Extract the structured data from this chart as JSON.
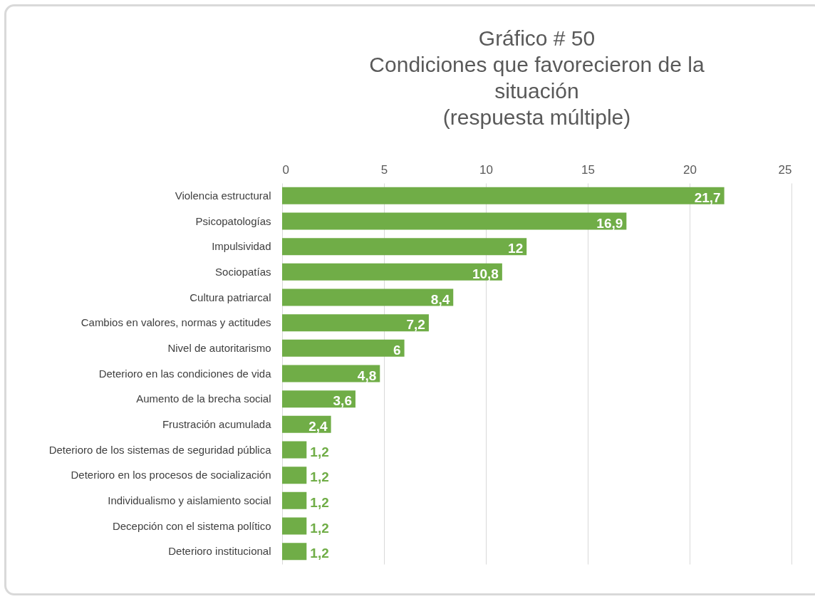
{
  "chart_data": {
    "type": "bar",
    "orientation": "horizontal",
    "title": "Gráfico # 50\nCondiciones que favorecieron de la\nsituación\n(respuesta múltiple)",
    "categories": [
      "Violencia estructural",
      "Psicopatologías",
      "Impulsividad",
      "Sociopatías",
      "Cultura patriarcal",
      "Cambios en valores, normas y actitudes",
      "Nivel de autoritarismo",
      "Deterioro en las condiciones de vida",
      "Aumento de la brecha social",
      "Frustración acumulada",
      "Deterioro de los sistemas de seguridad pública",
      "Deterioro en los procesos de socialización",
      "Individualismo y aislamiento social",
      "Decepción con el sistema político",
      "Deterioro institucional"
    ],
    "values": [
      21.7,
      16.9,
      12,
      10.8,
      8.4,
      7.2,
      6,
      4.8,
      3.6,
      2.4,
      1.2,
      1.2,
      1.2,
      1.2,
      1.2
    ],
    "value_labels": [
      "21,7",
      "16,9",
      "12",
      "10,8",
      "8,4",
      "7,2",
      "6",
      "4,8",
      "3,6",
      "2,4",
      "1,2",
      "1,2",
      "1,2",
      "1,2",
      "1,2"
    ],
    "color": "#70ad47",
    "xlim": [
      0,
      25
    ],
    "xticks": [
      0,
      5,
      10,
      15,
      20,
      25
    ],
    "grid": "x"
  }
}
